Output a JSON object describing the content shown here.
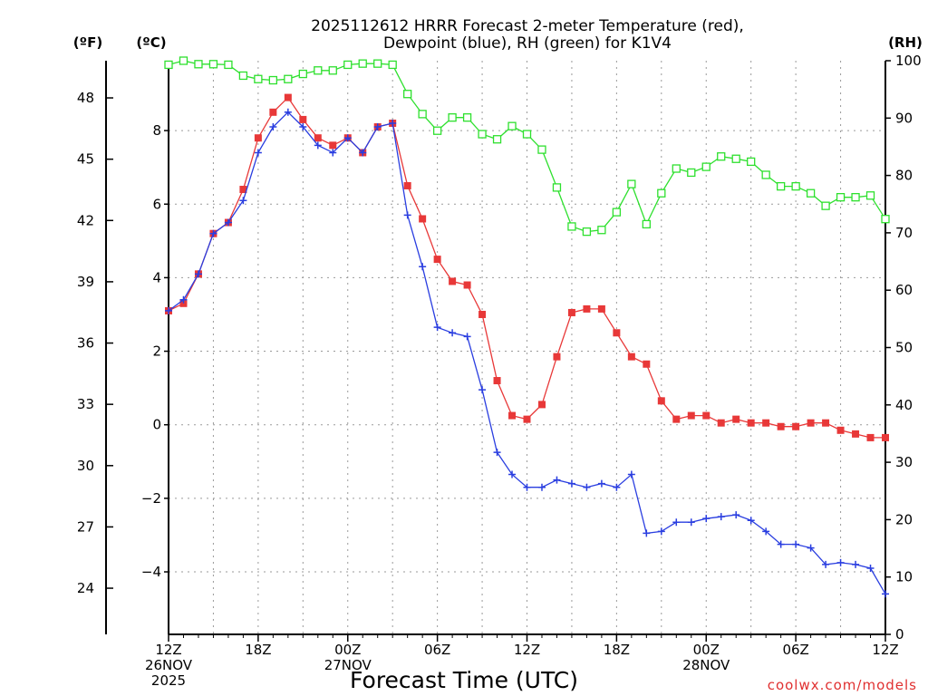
{
  "chart_data": {
    "type": "line",
    "title_line1": "2025112612 HRRR Forecast 2-meter Temperature (red),",
    "title_line2": "Dewpoint (blue), RH (green) for K1V4",
    "xlabel": "Forecast Time (UTC)",
    "credit": "coolwx.com/models",
    "unit_left_outer": "(ºF)",
    "unit_left_inner": "(ºC)",
    "unit_right": "(RH)",
    "x_range_hours": [
      0,
      48
    ],
    "c_range": [
      -5.7,
      9.9
    ],
    "rh_range": [
      0,
      100
    ],
    "c_ticks": [
      {
        "v": 8,
        "label": "8"
      },
      {
        "v": 6,
        "label": "6"
      },
      {
        "v": 4,
        "label": "4"
      },
      {
        "v": 2,
        "label": "2"
      },
      {
        "v": 0,
        "label": "0"
      },
      {
        "v": -2,
        "label": "−2"
      },
      {
        "v": -4,
        "label": "−4"
      }
    ],
    "f_ticks": [
      {
        "v": 48,
        "label": "48"
      },
      {
        "v": 45,
        "label": "45"
      },
      {
        "v": 42,
        "label": "42"
      },
      {
        "v": 39,
        "label": "39"
      },
      {
        "v": 36,
        "label": "36"
      },
      {
        "v": 33,
        "label": "33"
      },
      {
        "v": 30,
        "label": "30"
      },
      {
        "v": 27,
        "label": "27"
      },
      {
        "v": 24,
        "label": "24"
      }
    ],
    "rh_ticks": [
      {
        "v": 100,
        "label": "100"
      },
      {
        "v": 90,
        "label": "90"
      },
      {
        "v": 80,
        "label": "80"
      },
      {
        "v": 70,
        "label": "70"
      },
      {
        "v": 60,
        "label": "60"
      },
      {
        "v": 50,
        "label": "50"
      },
      {
        "v": 40,
        "label": "40"
      },
      {
        "v": 30,
        "label": "30"
      },
      {
        "v": 20,
        "label": "20"
      },
      {
        "v": 10,
        "label": "10"
      },
      {
        "v": 0,
        "label": "0"
      }
    ],
    "x_ticks": [
      {
        "h": 0,
        "lines": [
          "12Z",
          "26NOV",
          "2025"
        ]
      },
      {
        "h": 6,
        "lines": [
          "18Z"
        ]
      },
      {
        "h": 12,
        "lines": [
          "00Z",
          "27NOV"
        ]
      },
      {
        "h": 18,
        "lines": [
          "06Z"
        ]
      },
      {
        "h": 24,
        "lines": [
          "12Z"
        ]
      },
      {
        "h": 30,
        "lines": [
          "18Z"
        ]
      },
      {
        "h": 36,
        "lines": [
          "00Z",
          "28NOV"
        ]
      },
      {
        "h": 42,
        "lines": [
          "06Z"
        ]
      },
      {
        "h": 48,
        "lines": [
          "12Z"
        ]
      }
    ],
    "series": [
      {
        "name": "Temperature",
        "unit": "°C",
        "color": "#e83838",
        "marker": "filled-square",
        "values": [
          3.1,
          3.3,
          4.1,
          5.2,
          5.5,
          6.4,
          7.8,
          8.5,
          8.9,
          8.3,
          7.8,
          7.6,
          7.8,
          7.4,
          8.1,
          8.2,
          6.5,
          5.6,
          4.5,
          3.9,
          3.8,
          3.0,
          1.2,
          0.25,
          0.15,
          0.55,
          1.85,
          3.05,
          3.15,
          3.15,
          2.5,
          1.85,
          1.65,
          0.65,
          0.15,
          0.25,
          0.25,
          0.05,
          0.15,
          0.05,
          0.05,
          -0.05,
          -0.05,
          0.05,
          0.05,
          -0.15,
          -0.25,
          -0.35,
          -0.35
        ]
      },
      {
        "name": "Dewpoint",
        "unit": "°C",
        "color": "#2a3ee0",
        "marker": "plus",
        "values": [
          3.1,
          3.4,
          4.1,
          5.2,
          5.5,
          6.1,
          7.4,
          8.1,
          8.5,
          8.1,
          7.6,
          7.4,
          7.8,
          7.4,
          8.1,
          8.2,
          5.7,
          4.3,
          2.65,
          2.5,
          2.4,
          0.95,
          -0.75,
          -1.35,
          -1.7,
          -1.7,
          -1.5,
          -1.6,
          -1.7,
          -1.6,
          -1.7,
          -1.35,
          -2.95,
          -2.9,
          -2.65,
          -2.65,
          -2.55,
          -2.5,
          -2.45,
          -2.6,
          -2.9,
          -3.25,
          -3.25,
          -3.35,
          -3.8,
          -3.75,
          -3.8,
          -3.9,
          -4.6
        ]
      },
      {
        "name": "RH",
        "unit": "%",
        "color": "#2ee02e",
        "marker": "open-square",
        "values": [
          99.3,
          100,
          99.4,
          99.4,
          99.3,
          97.4,
          96.8,
          96.6,
          96.8,
          97.7,
          98.3,
          98.3,
          99.3,
          99.5,
          99.5,
          99.3,
          94.2,
          90.7,
          87.8,
          90.1,
          90.1,
          87.2,
          86.3,
          88.6,
          87.2,
          84.5,
          77.9,
          71.1,
          70.2,
          70.5,
          73.6,
          78.5,
          71.5,
          76.9,
          81.2,
          80.5,
          81.5,
          83.3,
          82.9,
          82.4,
          80.1,
          78.1,
          78.1,
          76.9,
          74.7,
          76.2,
          76.2,
          76.5,
          72.4
        ]
      }
    ]
  }
}
